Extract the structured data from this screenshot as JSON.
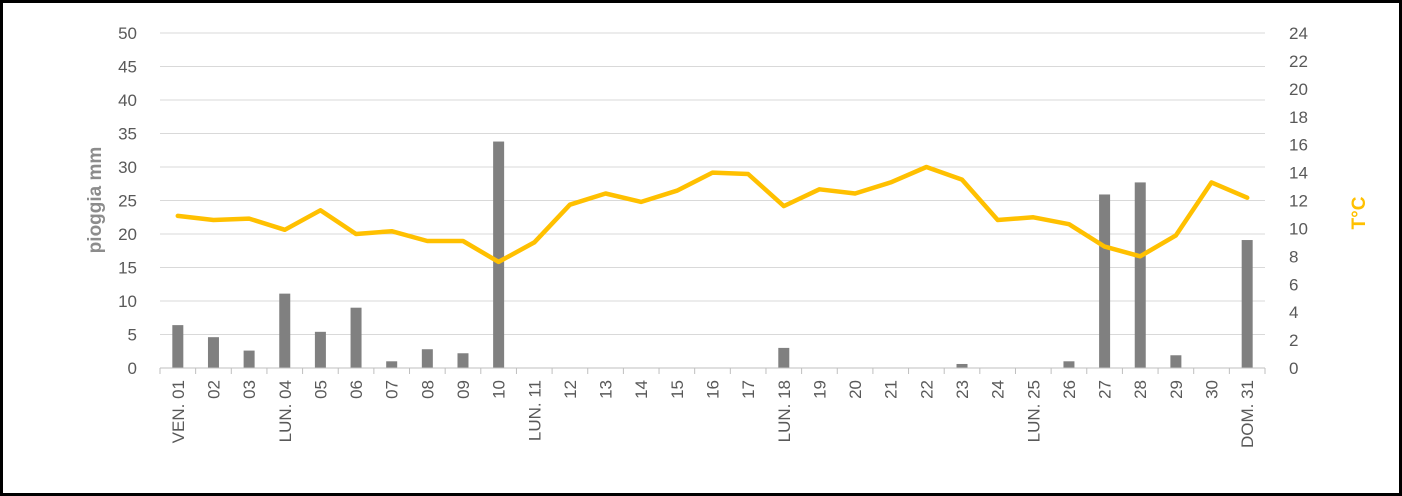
{
  "chart_data": {
    "type": "bar",
    "categories": [
      "VEN. 01",
      "02",
      "03",
      "LUN. 04",
      "05",
      "06",
      "07",
      "08",
      "09",
      "10",
      "LUN. 11",
      "12",
      "13",
      "14",
      "15",
      "16",
      "17",
      "LUN. 18",
      "19",
      "20",
      "21",
      "22",
      "23",
      "24",
      "LUN. 25",
      "26",
      "27",
      "28",
      "29",
      "30",
      "DOM. 31"
    ],
    "ylabel": "pioggia mm",
    "y2label": "T°C",
    "ylim": [
      0,
      50
    ],
    "y2lim": [
      0,
      24
    ],
    "yticks": [
      "0",
      "5",
      "10",
      "15",
      "20",
      "25",
      "30",
      "35",
      "40",
      "45",
      "50"
    ],
    "y2ticks": [
      "0",
      "2",
      "4",
      "6",
      "8",
      "10",
      "12",
      "14",
      "16",
      "18",
      "20",
      "22",
      "24"
    ],
    "grid": true,
    "series": [
      {
        "type": "bar",
        "axis": "left",
        "color": "#808080",
        "values": [
          6.4,
          4.6,
          2.6,
          11.1,
          5.4,
          9.0,
          1.0,
          2.8,
          2.2,
          33.8,
          0,
          0,
          0,
          0,
          0,
          0,
          0,
          3.0,
          0,
          0,
          0,
          0,
          0.6,
          0,
          0,
          1.0,
          25.9,
          27.7,
          1.9,
          0,
          19.1
        ]
      },
      {
        "type": "line",
        "axis": "right",
        "color": "#ffc000",
        "values": [
          10.9,
          10.6,
          10.7,
          9.9,
          11.3,
          9.6,
          9.8,
          9.1,
          9.1,
          7.6,
          9.0,
          11.7,
          12.5,
          11.9,
          12.7,
          14.0,
          13.9,
          11.6,
          12.8,
          12.5,
          13.3,
          14.4,
          13.5,
          10.6,
          10.8,
          10.3,
          8.7,
          8.0,
          9.5,
          13.3,
          12.2
        ]
      }
    ]
  }
}
